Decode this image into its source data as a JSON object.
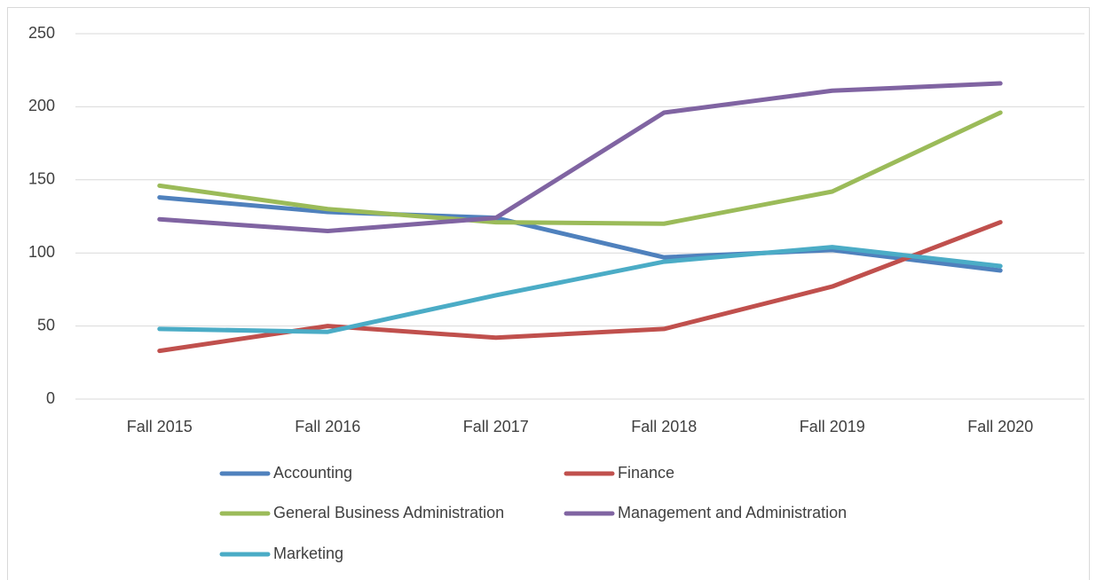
{
  "chart_data": {
    "type": "line",
    "categories": [
      "Fall 2015",
      "Fall 2016",
      "Fall 2017",
      "Fall 2018",
      "Fall 2019",
      "Fall 2020"
    ],
    "series": [
      {
        "name": "Accounting",
        "color": "#4f81bd",
        "values": [
          138,
          128,
          124,
          97,
          102,
          88
        ]
      },
      {
        "name": "Finance",
        "color": "#c0504d",
        "values": [
          33,
          50,
          42,
          48,
          77,
          121
        ]
      },
      {
        "name": "General Business Administration",
        "color": "#9bbb59",
        "values": [
          146,
          130,
          121,
          120,
          142,
          196
        ]
      },
      {
        "name": "Management and Administration",
        "color": "#8064a2",
        "values": [
          123,
          115,
          124,
          196,
          211,
          216
        ]
      },
      {
        "name": "Marketing",
        "color": "#4bacc6",
        "values": [
          48,
          46,
          71,
          94,
          104,
          91
        ]
      }
    ],
    "ylim": [
      0,
      250
    ],
    "yticks": [
      0,
      50,
      100,
      150,
      200,
      250
    ],
    "grid": true,
    "legend": "bottom"
  }
}
